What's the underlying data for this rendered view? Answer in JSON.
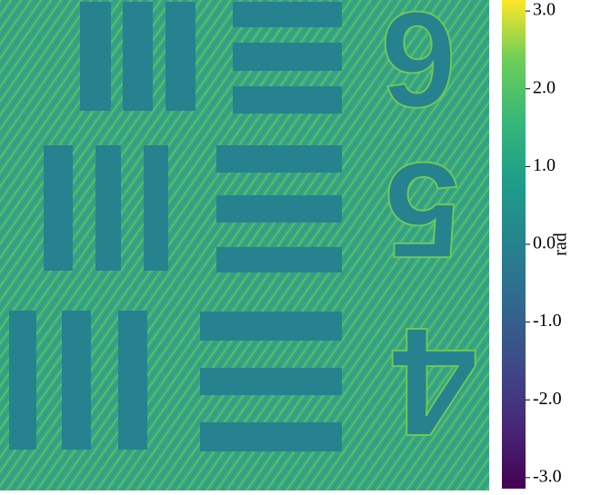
{
  "chart_data": {
    "type": "image",
    "colorbar": {
      "label": "rad",
      "colormap": "viridis",
      "ylim": [
        -3.14159,
        3.14159
      ],
      "yticks": [
        {
          "value": 3,
          "label": "3.0"
        },
        {
          "value": 2,
          "label": "2.0"
        },
        {
          "value": 1,
          "label": "1.0"
        },
        {
          "value": 0,
          "label": "0.0"
        },
        {
          "value": -1,
          "label": "-1.0"
        },
        {
          "value": -2,
          "label": "-2.0"
        },
        {
          "value": -3,
          "label": "-3.0"
        }
      ]
    },
    "target_digits": [
      "6",
      "5",
      "4"
    ]
  }
}
